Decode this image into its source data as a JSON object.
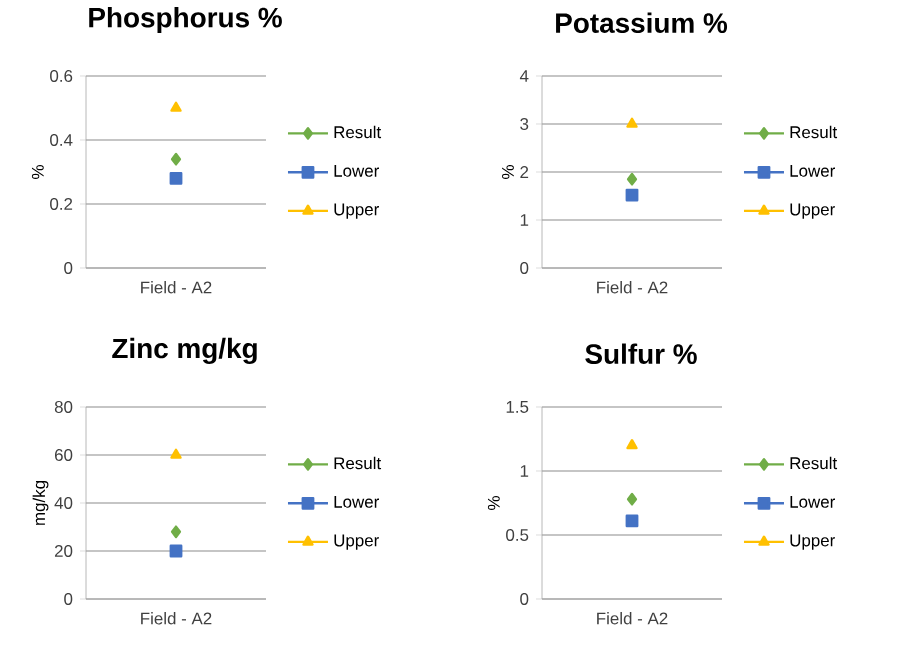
{
  "chart_data": [
    {
      "type": "line",
      "title": "Phosphorus %",
      "ylabel": "%",
      "categories": [
        "Field - A2"
      ],
      "ylim": [
        0,
        0.6
      ],
      "yticks": [
        0,
        0.2,
        0.4,
        0.6
      ],
      "grid": "y",
      "legend": "right",
      "series": [
        {
          "name": "Result",
          "color": "#70ad47",
          "marker": "diamond",
          "values": [
            0.34
          ]
        },
        {
          "name": "Lower",
          "color": "#4472c4",
          "marker": "square",
          "values": [
            0.28
          ]
        },
        {
          "name": "Upper",
          "color": "#ffc000",
          "marker": "triangle",
          "values": [
            0.5
          ]
        }
      ]
    },
    {
      "type": "line",
      "title": "Potassium %",
      "ylabel": "%",
      "categories": [
        "Field - A2"
      ],
      "ylim": [
        0,
        4
      ],
      "yticks": [
        0,
        1,
        2,
        3,
        4
      ],
      "grid": "y",
      "legend": "right",
      "series": [
        {
          "name": "Result",
          "color": "#70ad47",
          "marker": "diamond",
          "values": [
            1.85
          ]
        },
        {
          "name": "Lower",
          "color": "#4472c4",
          "marker": "square",
          "values": [
            1.52
          ]
        },
        {
          "name": "Upper",
          "color": "#ffc000",
          "marker": "triangle",
          "values": [
            3.0
          ]
        }
      ]
    },
    {
      "type": "line",
      "title": "Zinc mg/kg",
      "ylabel": "mg/kg",
      "categories": [
        "Field - A2"
      ],
      "ylim": [
        0,
        80
      ],
      "yticks": [
        0,
        20,
        40,
        60,
        80
      ],
      "grid": "y",
      "legend": "right",
      "series": [
        {
          "name": "Result",
          "color": "#70ad47",
          "marker": "diamond",
          "values": [
            28
          ]
        },
        {
          "name": "Lower",
          "color": "#4472c4",
          "marker": "square",
          "values": [
            20
          ]
        },
        {
          "name": "Upper",
          "color": "#ffc000",
          "marker": "triangle",
          "values": [
            60
          ]
        }
      ]
    },
    {
      "type": "line",
      "title": "Sulfur %",
      "ylabel": "%",
      "categories": [
        "Field - A2"
      ],
      "ylim": [
        0,
        1.5
      ],
      "yticks": [
        0,
        0.5,
        1,
        1.5
      ],
      "grid": "y",
      "legend": "right",
      "series": [
        {
          "name": "Result",
          "color": "#70ad47",
          "marker": "diamond",
          "values": [
            0.78
          ]
        },
        {
          "name": "Lower",
          "color": "#4472c4",
          "marker": "square",
          "values": [
            0.61
          ]
        },
        {
          "name": "Upper",
          "color": "#ffc000",
          "marker": "triangle",
          "values": [
            1.2
          ]
        }
      ]
    }
  ]
}
